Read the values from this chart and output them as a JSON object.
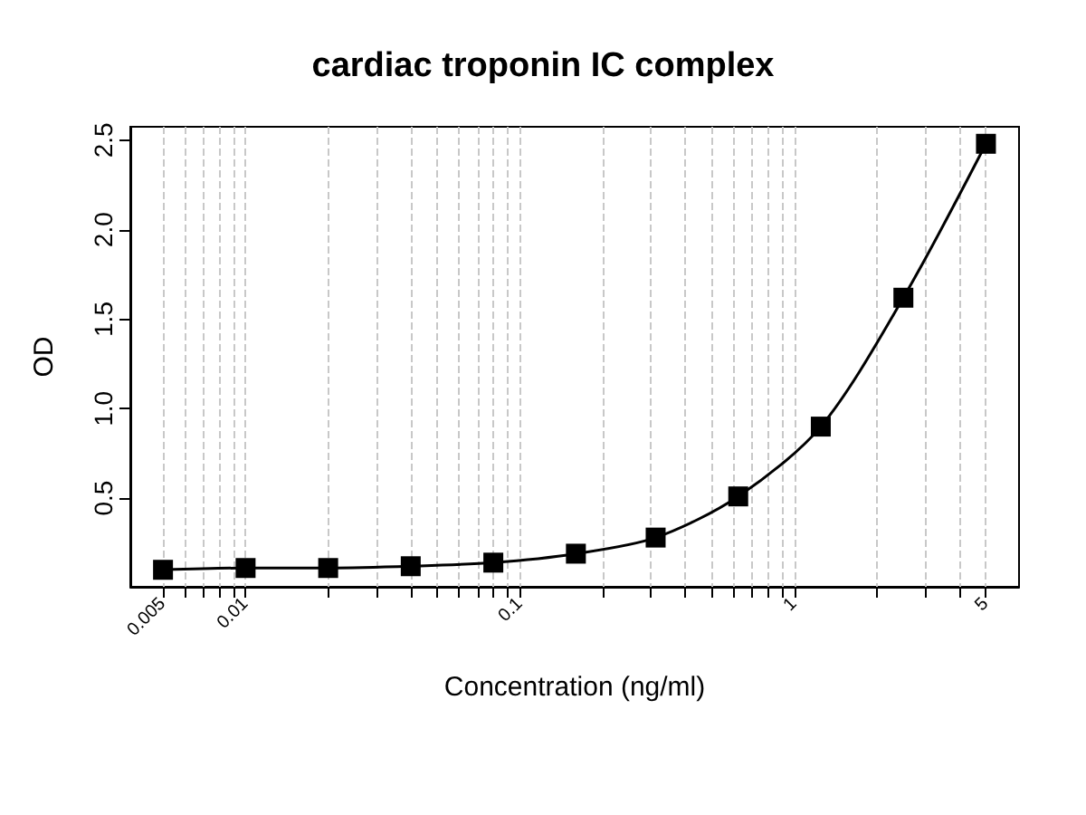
{
  "chart_data": {
    "type": "scatter",
    "title": "cardiac troponin IC complex",
    "xlabel": "Concentration (ng/ml)",
    "ylabel": "OD",
    "log": "x",
    "grid": "x",
    "marker": "square",
    "x": [
      0.005,
      0.01,
      0.02,
      0.04,
      0.08,
      0.16,
      0.3125,
      0.625,
      1.25,
      2.5,
      5
    ],
    "series": [
      {
        "color": "#000000",
        "values": [
          0.1,
          0.11,
          0.11,
          0.12,
          0.14,
          0.19,
          0.28,
          0.51,
          0.9,
          1.62,
          2.48
        ]
      },
      {
        "type": "line",
        "color": "#000000",
        "marker": "none",
        "x": [
          0.005,
          0.01,
          0.02,
          0.04,
          0.08,
          0.16,
          0.3125,
          0.625,
          1.25,
          2.5,
          5
        ],
        "values": [
          0.1,
          0.11,
          0.11,
          0.12,
          0.14,
          0.19,
          0.28,
          0.51,
          0.9,
          1.62,
          2.48
        ]
      }
    ],
    "xlim": [
      0.0038,
      6.6
    ],
    "ylim": [
      0.005,
      2.575
    ],
    "xticks": [
      0.005,
      {
        "value": 0.006,
        "label": null
      },
      {
        "value": 0.007,
        "label": null
      },
      {
        "value": 0.008,
        "label": null
      },
      {
        "value": 0.009,
        "label": null
      },
      0.01,
      {
        "value": 0.02,
        "label": null
      },
      {
        "value": 0.03,
        "label": null
      },
      {
        "value": 0.04,
        "label": null
      },
      {
        "value": 0.05,
        "label": null
      },
      {
        "value": 0.06,
        "label": null
      },
      {
        "value": 0.07,
        "label": null
      },
      {
        "value": 0.08,
        "label": null
      },
      {
        "value": 0.09,
        "label": null
      },
      0.1,
      {
        "value": 0.2,
        "label": null
      },
      {
        "value": 0.3,
        "label": null
      },
      {
        "value": 0.4,
        "label": null
      },
      {
        "value": 0.5,
        "label": null
      },
      {
        "value": 0.6,
        "label": null
      },
      {
        "value": 0.7,
        "label": null
      },
      {
        "value": 0.8,
        "label": null
      },
      {
        "value": 0.9,
        "label": null
      },
      1,
      {
        "value": 2,
        "label": null
      },
      {
        "value": 3,
        "label": null
      },
      {
        "value": 4,
        "label": null
      },
      5
    ],
    "yticks": [
      0.5,
      {
        "value": 1,
        "label": "1.0"
      },
      1.5,
      {
        "value": 2,
        "label": "2.0"
      },
      2.5
    ]
  }
}
